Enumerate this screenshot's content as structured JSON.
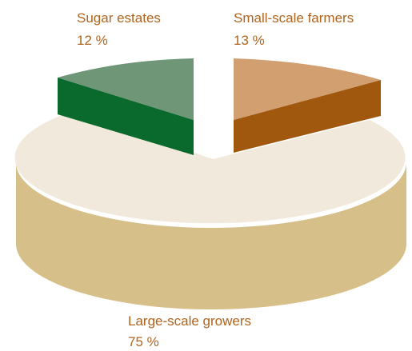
{
  "chart_data": {
    "type": "pie",
    "title": "",
    "slices": [
      {
        "name": "Small-scale farmers",
        "value": 13,
        "value_label": "13 %",
        "color": "#d29f70",
        "side_color": "#a0580e"
      },
      {
        "name": "Large-scale growers",
        "value": 75,
        "value_label": "75 %",
        "color": "#f1eadc",
        "side_color": "#d6bf88"
      },
      {
        "name": "Sugar estates",
        "value": 12,
        "value_label": "12 %",
        "color": "#6e9677",
        "side_color": "#0a6a2d"
      }
    ],
    "style": "3D exploded pie",
    "legend": "none",
    "label_color": "#b0641e"
  }
}
